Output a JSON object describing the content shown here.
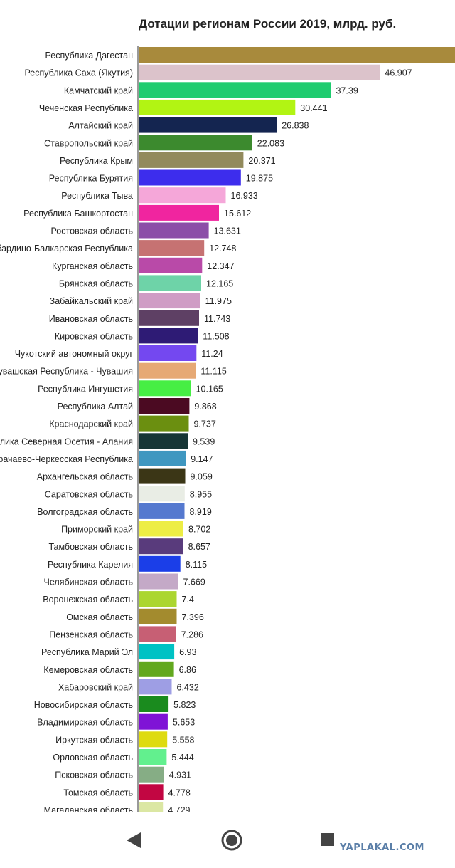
{
  "chart_data": {
    "type": "bar",
    "orientation": "horizontal",
    "title": "Дотации регионам России 2019, млрд. руб.",
    "categories": [
      "Республика Дагестан",
      "Республика Саха (Якутия)",
      "Камчатский край",
      "Чеченская Республика",
      "Алтайский край",
      "Ставропольский край",
      "Республика Крым",
      "Республика Бурятия",
      "Республика Тыва",
      "Республика Башкортостан",
      "Ростовская область",
      "Кабардино-Балкарская Республика",
      "Курганская область",
      "Брянская область",
      "Забайкальский край",
      "Ивановская область",
      "Кировская область",
      "Чукотский автономный округ",
      "Чувашская Республика - Чувашия",
      "Республика Ингушетия",
      "Республика Алтай",
      "Краснодарский край",
      "Республика Северная Осетия - Алания",
      "Карачаево-Черкесская Республика",
      "Архангельская область",
      "Саратовская область",
      "Волгоградская область",
      "Приморский край",
      "Тамбовская область",
      "Республика Карелия",
      "Челябинская область",
      "Воронежская область",
      "Омская область",
      "Пензенская область",
      "Республика Марий Эл",
      "Кемеровская область",
      "Хабаровский край",
      "Новосибирская область",
      "Владимирская область",
      "Иркутская область",
      "Орловская область",
      "Псковская область",
      "Томская область",
      "Магаданская область"
    ],
    "values": [
      61.5,
      46.907,
      37.39,
      30.441,
      26.838,
      22.083,
      20.371,
      19.875,
      16.933,
      15.612,
      13.631,
      12.748,
      12.347,
      12.165,
      11.975,
      11.743,
      11.508,
      11.24,
      11.115,
      10.165,
      9.868,
      9.737,
      9.539,
      9.147,
      9.059,
      8.955,
      8.919,
      8.702,
      8.657,
      8.115,
      7.669,
      7.4,
      7.396,
      7.286,
      6.93,
      6.86,
      6.432,
      5.823,
      5.653,
      5.558,
      5.444,
      4.931,
      4.778,
      4.729
    ],
    "value_labels": [
      "",
      "46.907",
      "37.39",
      "30.441",
      "26.838",
      "22.083",
      "20.371",
      "19.875",
      "16.933",
      "15.612",
      "13.631",
      "12.748",
      "12.347",
      "12.165",
      "11.975",
      "11.743",
      "11.508",
      "11.24",
      "11.115",
      "10.165",
      "9.868",
      "9.737",
      "9.539",
      "9.147",
      "9.059",
      "8.955",
      "8.919",
      "8.702",
      "8.657",
      "8.115",
      "7.669",
      "7.4",
      "7.396",
      "7.286",
      "6.93",
      "6.86",
      "6.432",
      "5.823",
      "5.653",
      "5.558",
      "5.444",
      "4.931",
      "4.778",
      "4.729"
    ],
    "colors": [
      "#a88a3c",
      "#dcc3cb",
      "#1fcc6f",
      "#b2f413",
      "#142550",
      "#3c8a2e",
      "#928a5c",
      "#3d2ded",
      "#f5a7d9",
      "#f0259f",
      "#8c4ea8",
      "#c67272",
      "#b94aa8",
      "#6ed3a8",
      "#cf9dc5",
      "#5e4064",
      "#2e1b75",
      "#7448f0",
      "#e6a975",
      "#46ee44",
      "#4b0a22",
      "#6b8f10",
      "#163535",
      "#3f97c0",
      "#3b3616",
      "#e9ede5",
      "#5579cf",
      "#eded45",
      "#593b7c",
      "#1b3ee8",
      "#c4a9c7",
      "#abd62f",
      "#a38b2e",
      "#c75f74",
      "#00c2c4",
      "#62a81e",
      "#9e9ee4",
      "#1a8b1e",
      "#7f13d6",
      "#dedb10",
      "#62f08e",
      "#86ad85",
      "#c20642",
      "#dbe7a3"
    ],
    "xlim": [
      0,
      61.5
    ],
    "grid": false,
    "legend": "none"
  },
  "bottom_nav": {
    "back_icon": "back-triangle-icon",
    "home_icon": "home-circle-icon",
    "recent_icon": "recent-square-icon",
    "watermark": "YAPLAKAL.COM"
  }
}
